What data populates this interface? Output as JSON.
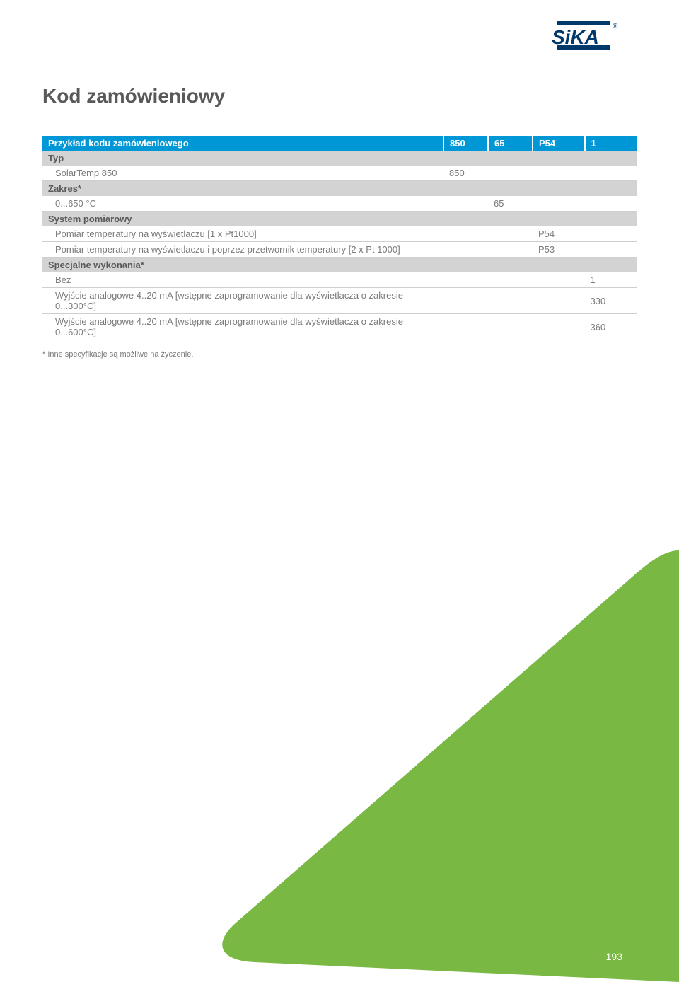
{
  "logo": {
    "text": "SiKA",
    "registered": "®",
    "fill": "#003a6b"
  },
  "title": "Kod zamówieniowy",
  "table": {
    "header": {
      "label": "Przykład kodu zamówieniowego",
      "c1": "850",
      "c2": "65",
      "c3": "P54",
      "c4": "1"
    },
    "sections": [
      {
        "title": "Typ",
        "rows": [
          {
            "label": "SolarTemp 850",
            "c1": "850",
            "c2": "",
            "c3": "",
            "c4": ""
          }
        ]
      },
      {
        "title": "Zakres*",
        "rows": [
          {
            "label": "0...650 °C",
            "c1": "",
            "c2": "65",
            "c3": "",
            "c4": ""
          }
        ]
      },
      {
        "title": "System pomiarowy",
        "rows": [
          {
            "label": "Pomiar temperatury na wyświetlaczu [1 x Pt1000]",
            "c1": "",
            "c2": "",
            "c3": "P54",
            "c4": ""
          },
          {
            "label": "Pomiar temperatury na wyświetlaczu i poprzez przetwornik temperatury [2 x Pt 1000]",
            "c1": "",
            "c2": "",
            "c3": "P53",
            "c4": ""
          }
        ]
      },
      {
        "title": "Specjalne wykonania*",
        "rows": [
          {
            "label": "Bez",
            "c1": "",
            "c2": "",
            "c3": "",
            "c4": "1"
          },
          {
            "label": "Wyjście analogowe 4..20 mA [wstępne zaprogramowanie dla wyświetlacza o zakresie 0...300°C]",
            "c1": "",
            "c2": "",
            "c3": "",
            "c4": "330"
          },
          {
            "label": "Wyjście analogowe 4..20 mA [wstępne zaprogramowanie dla wyświetlacza o zakresie 0...600°C]",
            "c1": "",
            "c2": "",
            "c3": "",
            "c4": "360"
          }
        ]
      }
    ]
  },
  "note": "* Inne specyfikacje są możliwe na życzenie.",
  "shape": {
    "fill": "#78b843",
    "curve_radius": 70
  },
  "page_number": "193",
  "colors": {
    "header_bg": "#0097d7",
    "section_bg": "#d3d3d3",
    "text": "#5a5a5a"
  }
}
